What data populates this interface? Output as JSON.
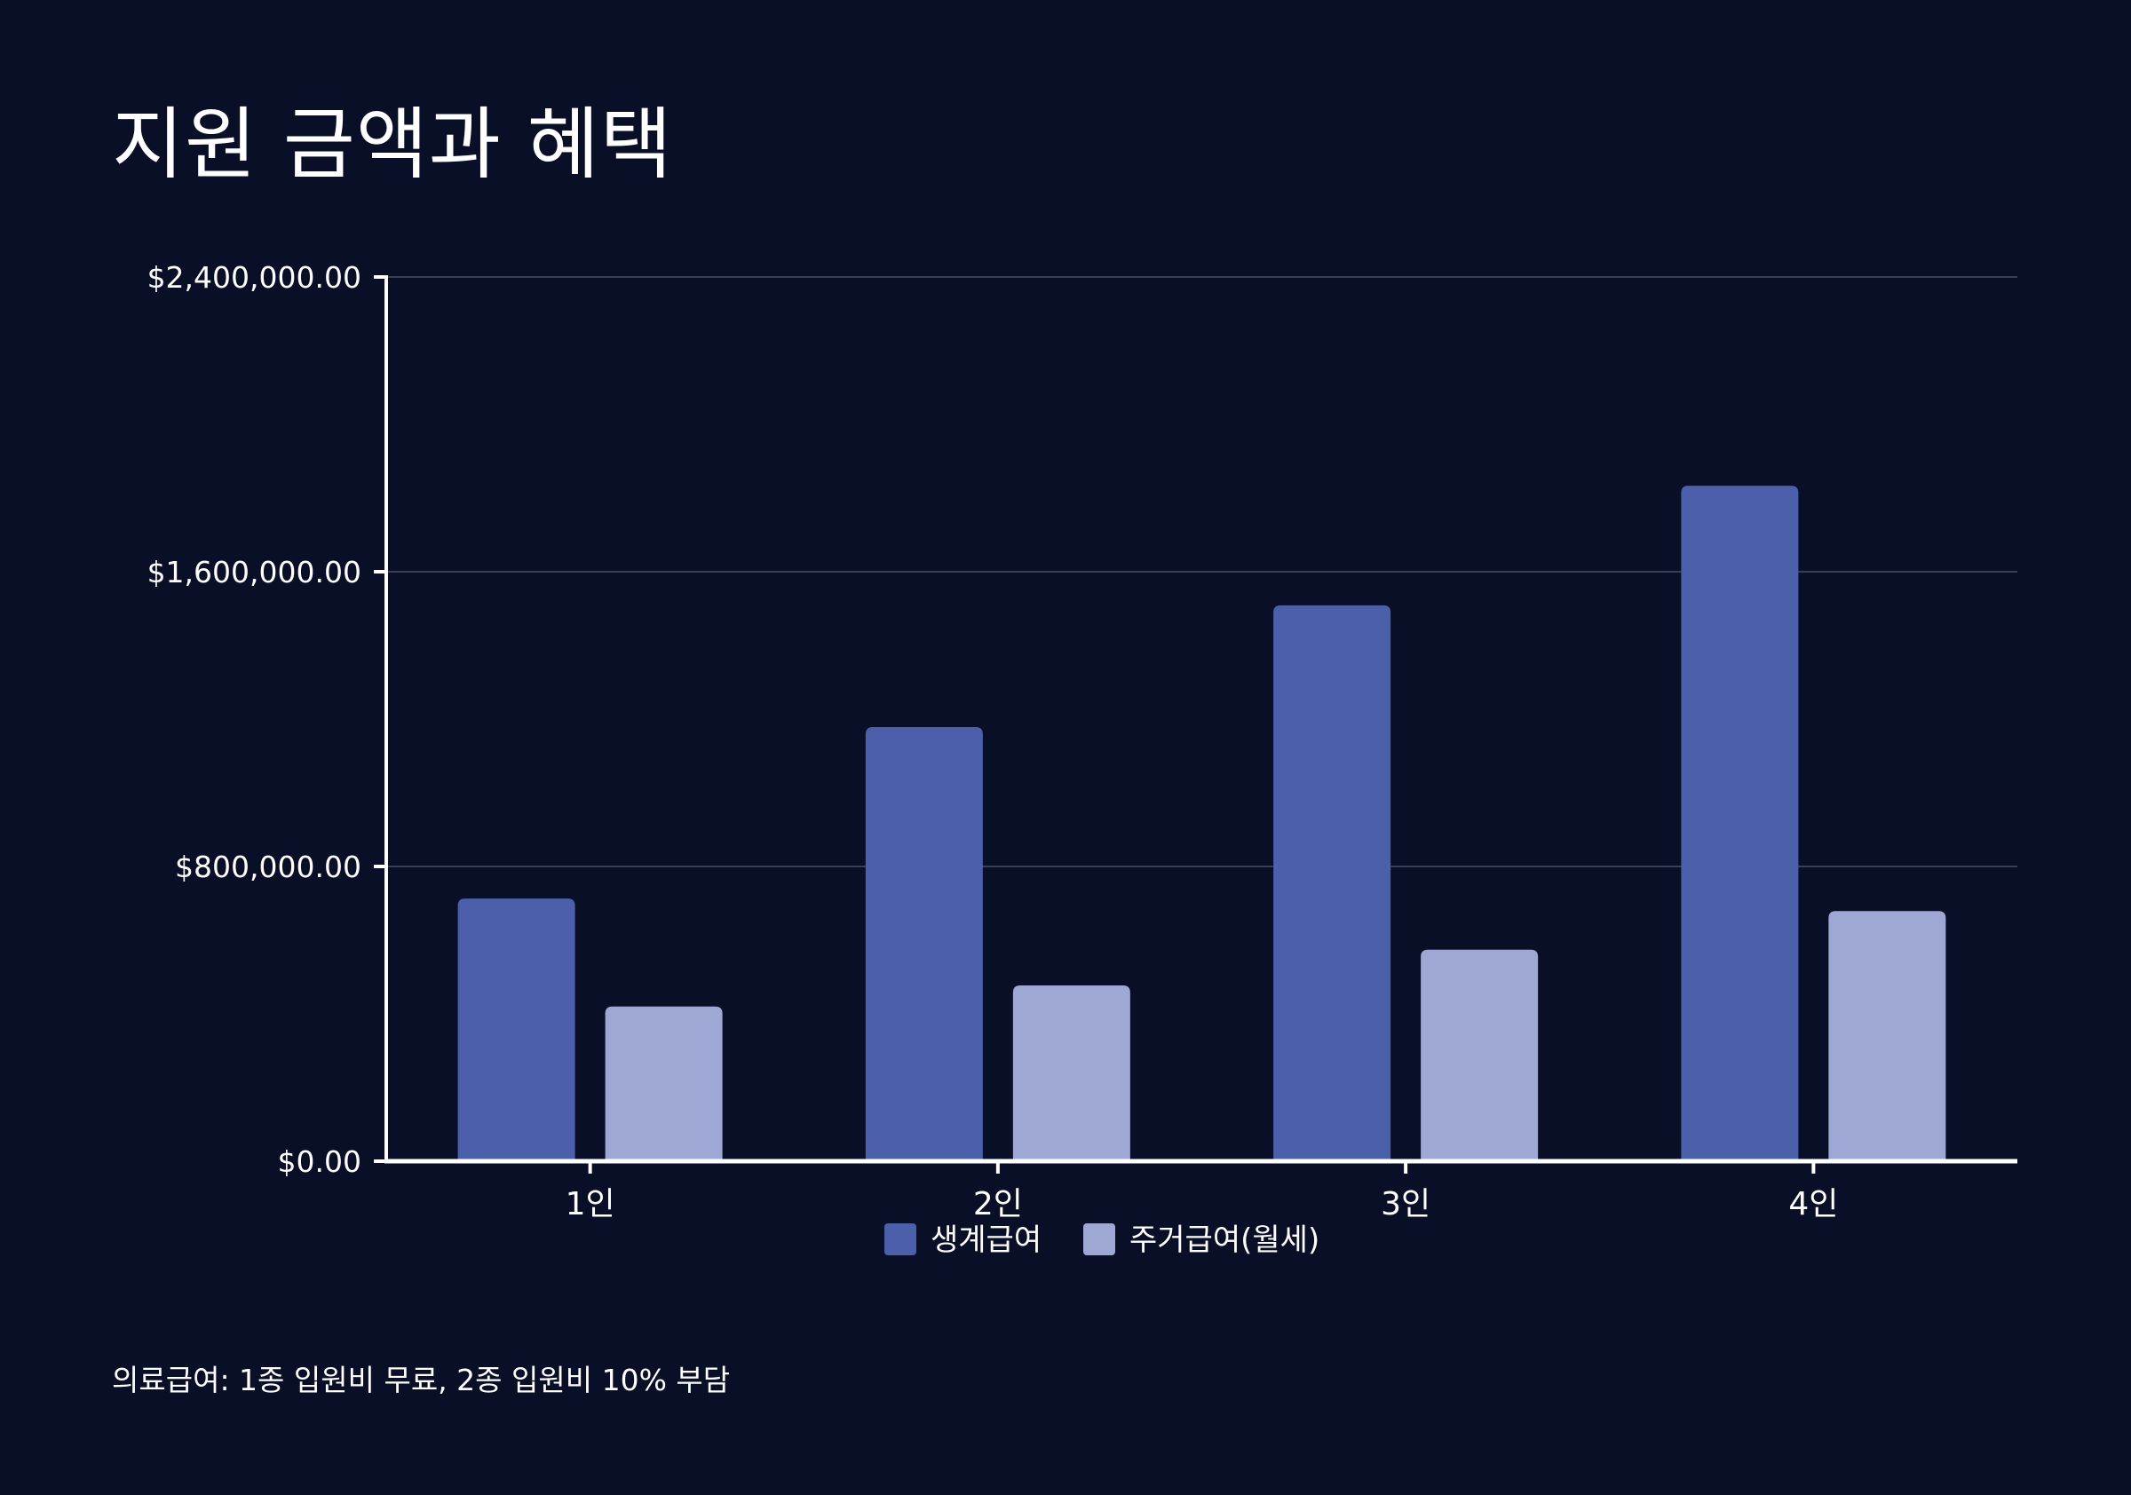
{
  "page": {
    "title": "지원 금액과 혜택",
    "footnote": "의료급여: 1종 입원비 무료, 2종 입원비 10% 부담"
  },
  "colors": {
    "background": "#0a0f28",
    "series_1": "#4c5fab",
    "series_2": "#9fa8d4",
    "axis": "#ffffff",
    "grid": "#3a3f55"
  },
  "chart_data": {
    "type": "bar",
    "title": "",
    "xlabel": "",
    "ylabel": "",
    "categories": [
      "1인",
      "2인",
      "3인",
      "4인"
    ],
    "series": [
      {
        "name": "생계급여",
        "values": [
          713102,
          1178435,
          1508690,
          1833572
        ]
      },
      {
        "name": "주거급여(월세)",
        "values": [
          420000,
          477000,
          574000,
          679000
        ]
      }
    ],
    "ylim": [
      0,
      2400000
    ],
    "yticks": [
      0,
      800000,
      1600000,
      2400000
    ],
    "ytick_labels": [
      "$0.00",
      "$800,000.00",
      "$1,600,000.00",
      "$2,400,000.00"
    ],
    "grid": true,
    "legend_position": "bottom-center"
  }
}
